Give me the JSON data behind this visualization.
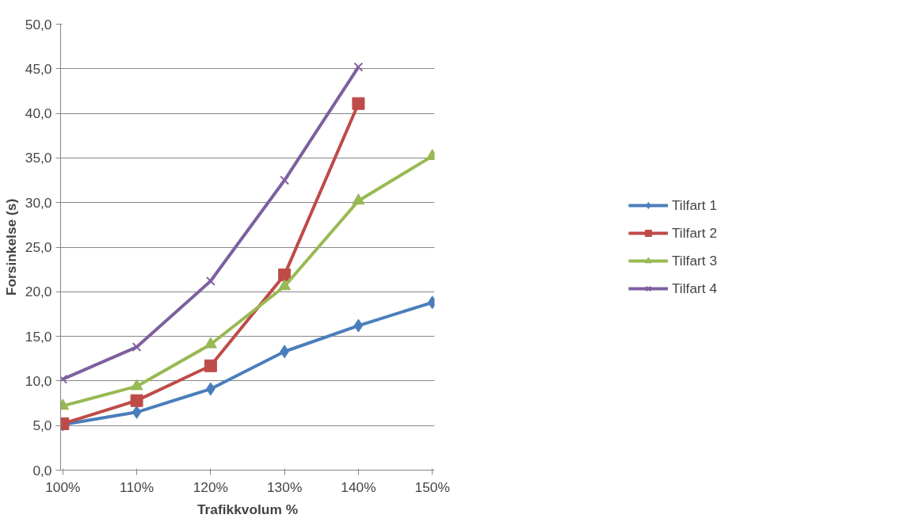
{
  "chart_data": {
    "type": "line",
    "xlabel": "Trafikkvolum %",
    "ylabel": "Forsinkelse (s)",
    "categories": [
      "100%",
      "110%",
      "120%",
      "130%",
      "140%",
      "150%"
    ],
    "ylim": [
      0,
      50
    ],
    "yticks": [
      {
        "value": 0,
        "label": "0,0"
      },
      {
        "value": 5,
        "label": "5,0"
      },
      {
        "value": 10,
        "label": "10,0"
      },
      {
        "value": 15,
        "label": "15,0"
      },
      {
        "value": 20,
        "label": "20,0"
      },
      {
        "value": 25,
        "label": "25,0"
      },
      {
        "value": 30,
        "label": "30,0"
      },
      {
        "value": 35,
        "label": "35,0"
      },
      {
        "value": 40,
        "label": "40,0"
      },
      {
        "value": 45,
        "label": "45,0"
      },
      {
        "value": 50,
        "label": "50,0"
      }
    ],
    "grid": "y",
    "legend": "right",
    "line_style": "solid",
    "series": [
      {
        "name": "Tilfart 1",
        "color": "#4a7ebb",
        "marker": "diamond",
        "values": [
          5.1,
          6.5,
          9.1,
          13.3,
          16.2,
          18.8
        ]
      },
      {
        "name": "Tilfart 2",
        "color": "#be4b48",
        "marker": "square",
        "values": [
          5.2,
          7.8,
          11.7,
          21.9,
          41.1,
          null
        ]
      },
      {
        "name": "Tilfart 3",
        "color": "#98b954",
        "marker": "triangle",
        "values": [
          7.2,
          9.4,
          14.1,
          20.6,
          30.2,
          35.2
        ]
      },
      {
        "name": "Tilfart 4",
        "color": "#7d60a0",
        "marker": "cross",
        "values": [
          10.2,
          13.8,
          21.2,
          32.5,
          45.2,
          null
        ]
      }
    ]
  }
}
